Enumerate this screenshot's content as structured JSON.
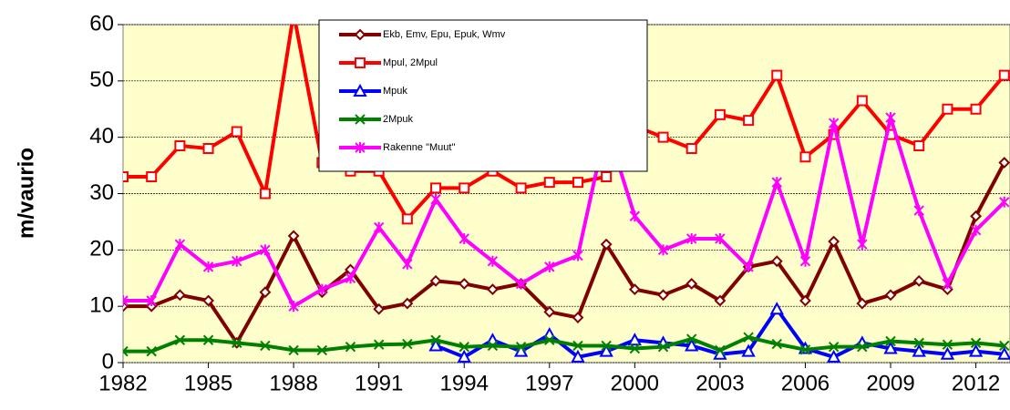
{
  "chart_data": {
    "type": "line",
    "y_label": "m/vaurio",
    "x": [
      1982,
      1983,
      1984,
      1985,
      1986,
      1987,
      1988,
      1989,
      1990,
      1991,
      1992,
      1993,
      1994,
      1995,
      1996,
      1997,
      1998,
      1999,
      2000,
      2001,
      2002,
      2003,
      2004,
      2005,
      2006,
      2007,
      2008,
      2009,
      2010,
      2011,
      2012,
      2013
    ],
    "xlim": [
      1982,
      2013.2
    ],
    "xticks": [
      1982,
      1985,
      1988,
      1991,
      1994,
      1997,
      2000,
      2003,
      2006,
      2009,
      2012
    ],
    "ylim": [
      0,
      60
    ],
    "yticks": [
      0,
      10,
      20,
      30,
      40,
      50,
      60
    ],
    "grid": true,
    "series": [
      {
        "name": "Ekb, Emv, Epu, Epuk, Wmv",
        "color": "#800000",
        "marker": "diamond",
        "values": [
          10,
          10,
          12,
          11,
          3.5,
          12.5,
          22.5,
          12.5,
          16.5,
          9.5,
          10.5,
          14.5,
          14,
          13,
          14,
          9,
          8,
          21,
          13,
          12,
          14,
          11,
          17,
          18,
          11,
          21.5,
          10.5,
          12,
          14.5,
          13,
          26,
          35.5
        ]
      },
      {
        "name": "Mpul, 2Mpul",
        "color": "#ff0000",
        "marker": "square",
        "values": [
          33,
          33,
          38.5,
          38,
          41,
          30,
          62,
          35.5,
          34,
          34,
          25.5,
          31,
          31,
          34,
          31,
          32,
          32,
          33,
          42,
          40,
          38,
          44,
          43,
          51,
          36.5,
          40.5,
          46.5,
          40.5,
          38.5,
          45,
          45,
          51
        ]
      },
      {
        "name": "Mpuk",
        "color": "#0000ff",
        "marker": "triangle",
        "values": [
          null,
          null,
          null,
          null,
          null,
          null,
          null,
          null,
          null,
          null,
          null,
          3,
          1,
          4,
          2,
          5,
          1,
          2,
          4,
          3.5,
          3,
          1.5,
          2,
          9.5,
          2.5,
          1,
          3.5,
          2.5,
          2,
          1.5,
          2,
          1.5
        ]
      },
      {
        "name": "2Mpuk",
        "color": "#008000",
        "marker": "x",
        "values": [
          2,
          2,
          4,
          4,
          3.5,
          3,
          2.2,
          2.2,
          2.8,
          3.2,
          3.3,
          4,
          2.8,
          3,
          2.8,
          4,
          3,
          3,
          2.5,
          2.8,
          4.2,
          2.2,
          4.5,
          3.3,
          2.3,
          2.8,
          2.8,
          3.8,
          3.5,
          3.2,
          3.5,
          3
        ]
      },
      {
        "name": "Rakenne \"Muut\"",
        "color": "#ff00ff",
        "marker": "star",
        "values": [
          11,
          11,
          21,
          17,
          18,
          20,
          10,
          13,
          15,
          24,
          17.5,
          29,
          22,
          18,
          14,
          17,
          19,
          42,
          26,
          20,
          22,
          22,
          17,
          32,
          18,
          42.5,
          21,
          43.5,
          27,
          14,
          23.5,
          28.5
        ]
      }
    ]
  }
}
